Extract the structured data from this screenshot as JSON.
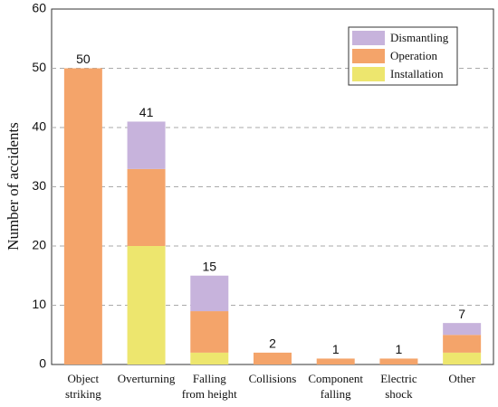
{
  "chart_data": {
    "type": "stacked_bar",
    "y_label": "Number of accidents",
    "categories": [
      "Object\nstriking",
      "Overturning",
      "Falling\nfrom height",
      "Collisions",
      "Component\nfalling",
      "Electric\nshock",
      "Other"
    ],
    "series": [
      {
        "name": "Installation",
        "color": "#ede66e",
        "values": [
          0,
          20,
          2,
          0,
          0,
          0,
          2
        ]
      },
      {
        "name": "Operation",
        "color": "#f4a46a",
        "values": [
          50,
          13,
          7,
          2,
          1,
          1,
          3
        ]
      },
      {
        "name": "Dismantling",
        "color": "#c7b3dc",
        "values": [
          0,
          8,
          6,
          0,
          0,
          0,
          2
        ]
      }
    ],
    "totals": [
      50,
      41,
      15,
      2,
      1,
      1,
      7
    ],
    "ylim": [
      0,
      60
    ],
    "yticks": [
      0,
      10,
      20,
      30,
      40,
      50,
      60
    ],
    "grid": true,
    "legend": "upper right"
  }
}
